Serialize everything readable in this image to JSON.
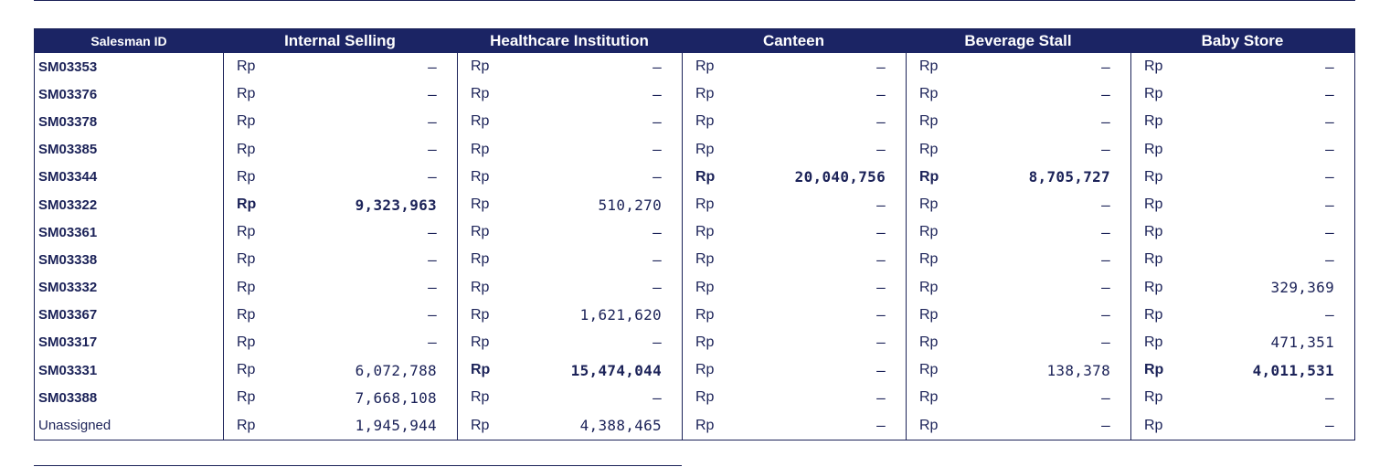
{
  "table": {
    "headers": {
      "id": "Salesman ID",
      "columns": [
        "Internal Selling",
        "Healthcare Institution",
        "Canteen",
        "Beverage Stall",
        "Baby Store"
      ]
    },
    "currency": "Rp",
    "rows": [
      {
        "id": "SM03353",
        "id_bold": true,
        "values": [
          "–",
          "–",
          "–",
          "–",
          "–"
        ],
        "bold": [
          false,
          false,
          false,
          false,
          false
        ]
      },
      {
        "id": "SM03376",
        "id_bold": true,
        "values": [
          "–",
          "–",
          "–",
          "–",
          "–"
        ],
        "bold": [
          false,
          false,
          false,
          false,
          false
        ]
      },
      {
        "id": "SM03378",
        "id_bold": true,
        "values": [
          "–",
          "–",
          "–",
          "–",
          "–"
        ],
        "bold": [
          false,
          false,
          false,
          false,
          false
        ]
      },
      {
        "id": "SM03385",
        "id_bold": true,
        "values": [
          "–",
          "–",
          "–",
          "–",
          "–"
        ],
        "bold": [
          false,
          false,
          false,
          false,
          false
        ]
      },
      {
        "id": "SM03344",
        "id_bold": true,
        "values": [
          "–",
          "–",
          "20,040,756",
          "8,705,727",
          "–"
        ],
        "bold": [
          false,
          false,
          true,
          true,
          false
        ]
      },
      {
        "id": "SM03322",
        "id_bold": true,
        "values": [
          "9,323,963",
          "510,270",
          "–",
          "–",
          "–"
        ],
        "bold": [
          true,
          false,
          false,
          false,
          false
        ]
      },
      {
        "id": "SM03361",
        "id_bold": true,
        "values": [
          "–",
          "–",
          "–",
          "–",
          "–"
        ],
        "bold": [
          false,
          false,
          false,
          false,
          false
        ]
      },
      {
        "id": "SM03338",
        "id_bold": true,
        "values": [
          "–",
          "–",
          "–",
          "–",
          "–"
        ],
        "bold": [
          false,
          false,
          false,
          false,
          false
        ]
      },
      {
        "id": "SM03332",
        "id_bold": true,
        "values": [
          "–",
          "–",
          "–",
          "–",
          "329,369"
        ],
        "bold": [
          false,
          false,
          false,
          false,
          false
        ]
      },
      {
        "id": "SM03367",
        "id_bold": true,
        "values": [
          "–",
          "1,621,620",
          "–",
          "–",
          "–"
        ],
        "bold": [
          false,
          false,
          false,
          false,
          false
        ]
      },
      {
        "id": "SM03317",
        "id_bold": true,
        "values": [
          "–",
          "–",
          "–",
          "–",
          "471,351"
        ],
        "bold": [
          false,
          false,
          false,
          false,
          false
        ]
      },
      {
        "id": "SM03331",
        "id_bold": true,
        "values": [
          "6,072,788",
          "15,474,044",
          "–",
          "138,378",
          "4,011,531"
        ],
        "bold": [
          false,
          true,
          false,
          false,
          true
        ]
      },
      {
        "id": "SM03388",
        "id_bold": true,
        "values": [
          "7,668,108",
          "–",
          "–",
          "–",
          "–"
        ],
        "bold": [
          false,
          false,
          false,
          false,
          false
        ]
      },
      {
        "id": "Unassigned",
        "id_bold": false,
        "values": [
          "1,945,944",
          "4,388,465",
          "–",
          "–",
          "–"
        ],
        "bold": [
          false,
          false,
          false,
          false,
          false
        ]
      }
    ]
  }
}
